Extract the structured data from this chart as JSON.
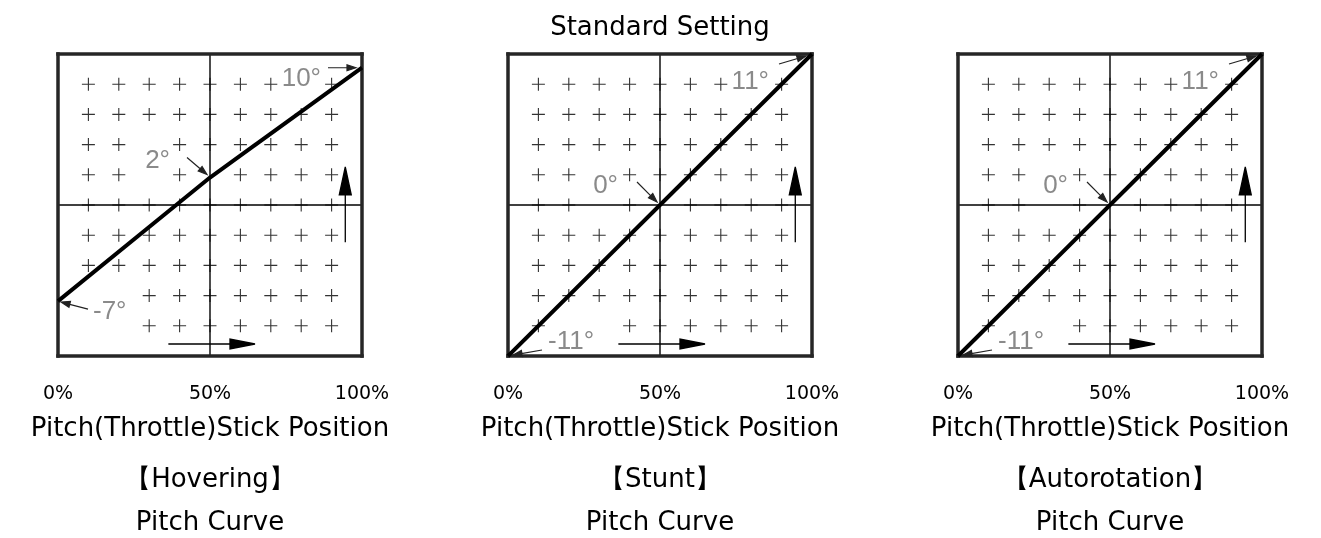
{
  "chart_data": [
    {
      "type": "line",
      "title": "【Hovering】",
      "subtitle": "Pitch Curve",
      "xlabel": "Pitch(Throttle)Stick Position",
      "x": [
        0,
        50,
        100
      ],
      "series": [
        {
          "color": "#000000",
          "values": [
            -7,
            2,
            10
          ],
          "value_labels": [
            "-7°",
            "2°",
            "10°"
          ]
        }
      ],
      "xlim": [
        0,
        100
      ],
      "ylim": [
        -11,
        11
      ],
      "xticks": [
        {
          "value": 0,
          "label": "0%"
        },
        {
          "value": 50,
          "label": "50%"
        },
        {
          "value": 100,
          "label": "100%"
        }
      ],
      "tick_labels": "x",
      "ref_lines": [
        {
          "axis": "x",
          "value": 50,
          "color": "#000000"
        },
        {
          "axis": "y",
          "value": 0,
          "color": "#000000"
        }
      ]
    },
    {
      "type": "line",
      "title": "【Stunt】",
      "subtitle": "Pitch Curve",
      "xlabel": "Pitch(Throttle)Stick Position",
      "x": [
        0,
        50,
        100
      ],
      "series": [
        {
          "color": "#000000",
          "values": [
            -11,
            0,
            11
          ],
          "value_labels": [
            "-11°",
            "0°",
            "11°"
          ]
        }
      ],
      "xlim": [
        0,
        100
      ],
      "ylim": [
        -11,
        11
      ],
      "xticks": [
        {
          "value": 0,
          "label": "0%"
        },
        {
          "value": 50,
          "label": "50%"
        },
        {
          "value": 100,
          "label": "100%"
        }
      ],
      "tick_labels": "x",
      "ref_lines": [
        {
          "axis": "x",
          "value": 50,
          "color": "#000000"
        },
        {
          "axis": "y",
          "value": 0,
          "color": "#000000"
        }
      ],
      "annotations": [
        "Standard Setting"
      ]
    },
    {
      "type": "line",
      "title": "【Autorotation】",
      "subtitle": "Pitch Curve",
      "xlabel": "Pitch(Throttle)Stick Position",
      "x": [
        0,
        50,
        100
      ],
      "series": [
        {
          "color": "#000000",
          "values": [
            -11,
            0,
            11
          ],
          "value_labels": [
            "-11°",
            "0°",
            "11°"
          ]
        }
      ],
      "xlim": [
        0,
        100
      ],
      "ylim": [
        -11,
        11
      ],
      "xticks": [
        {
          "value": 0,
          "label": "0%"
        },
        {
          "value": 50,
          "label": "50%"
        },
        {
          "value": 100,
          "label": "100%"
        }
      ],
      "tick_labels": "x",
      "ref_lines": [
        {
          "axis": "x",
          "value": 50,
          "color": "#000000"
        },
        {
          "axis": "y",
          "value": 0,
          "color": "#000000"
        }
      ]
    }
  ]
}
